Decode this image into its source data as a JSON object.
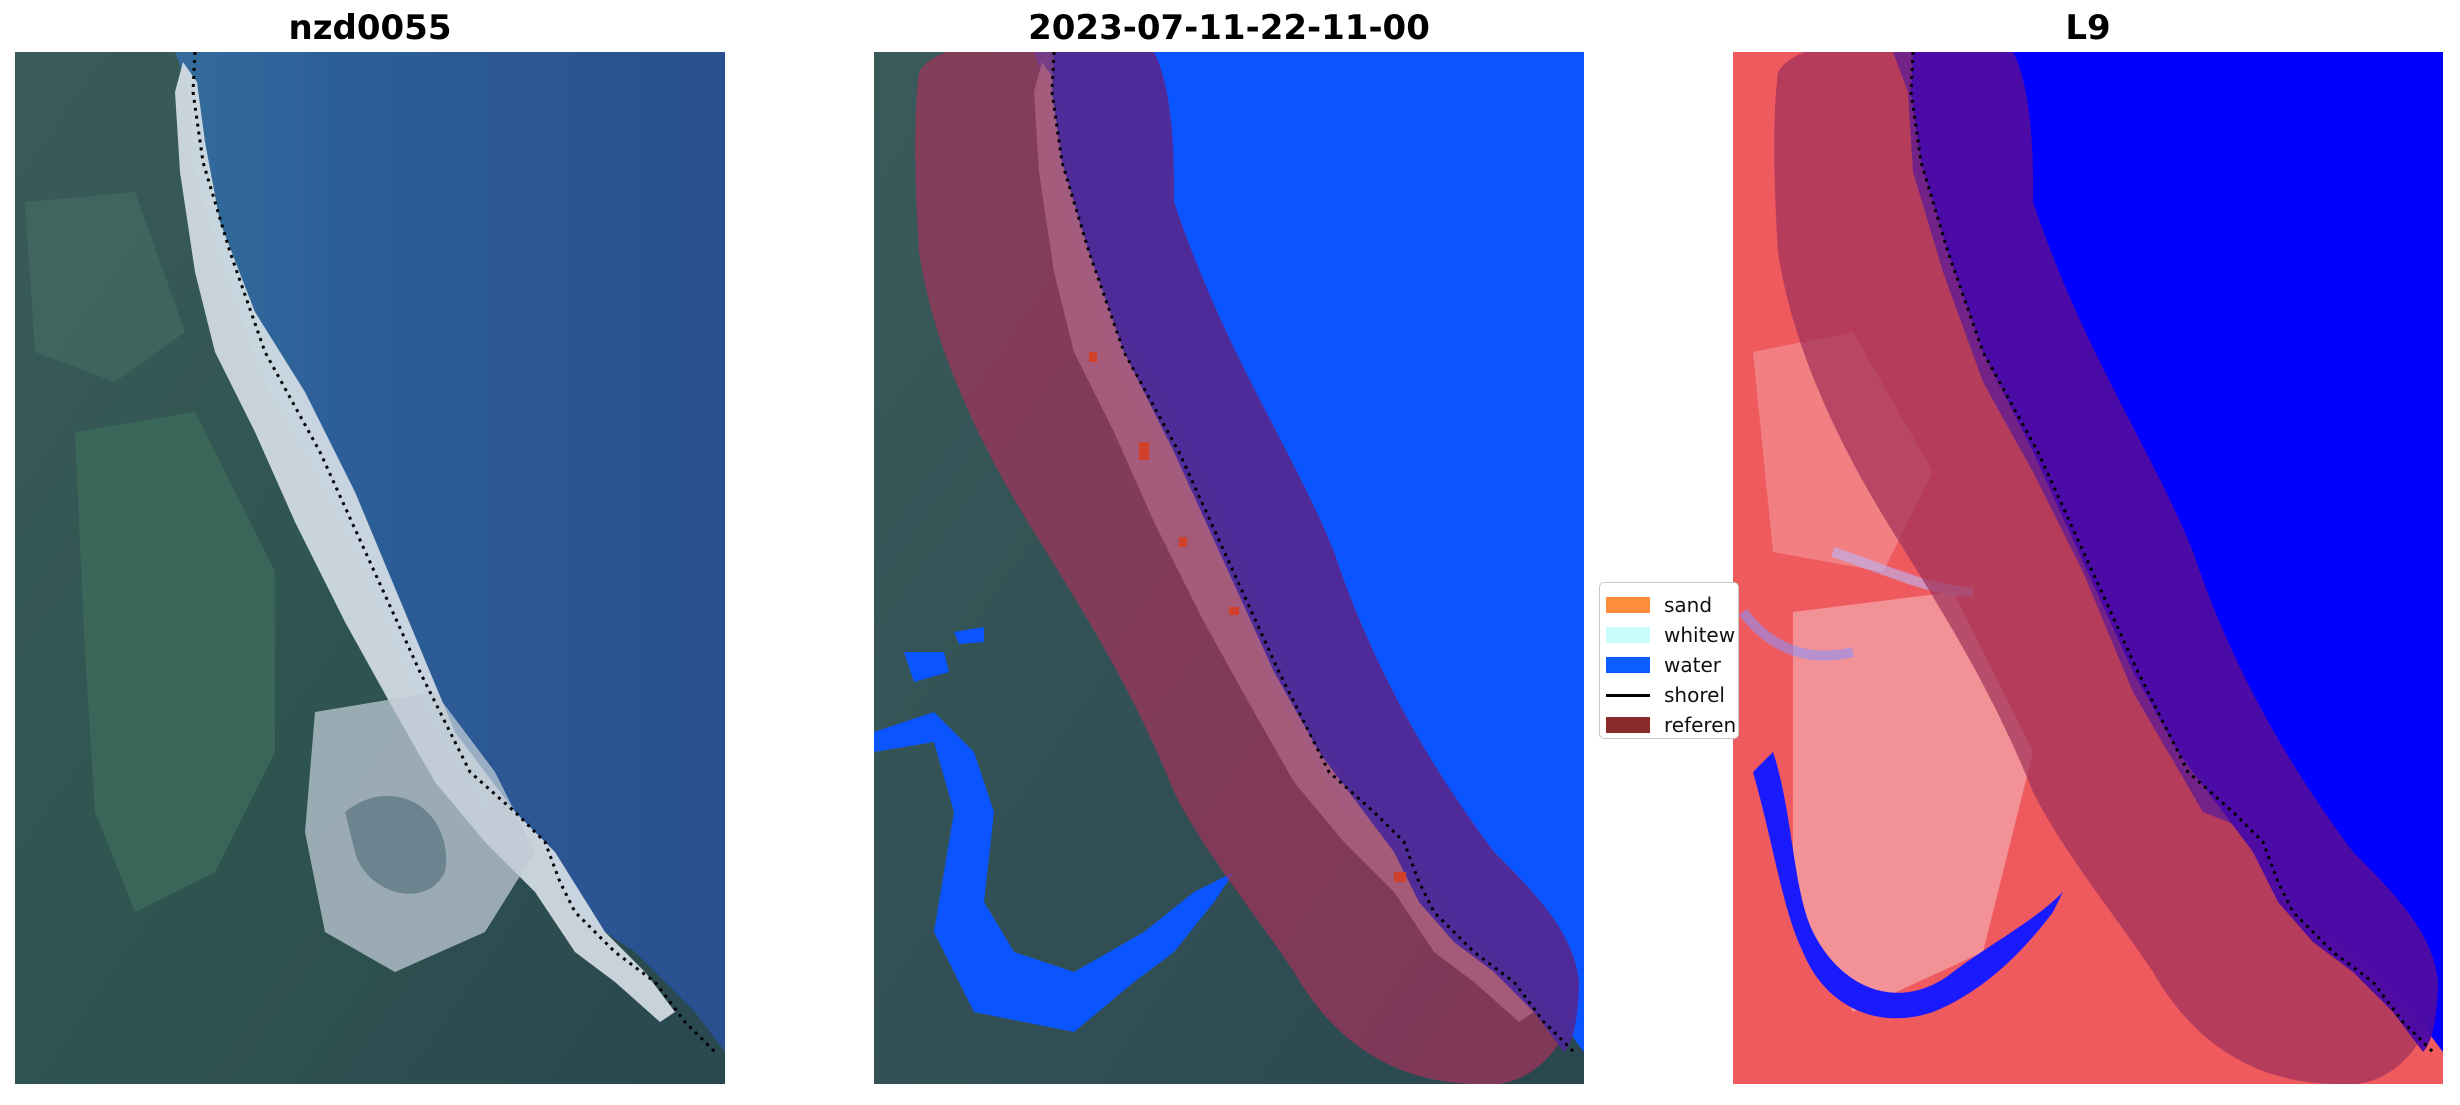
{
  "panels": [
    {
      "title": "nzd0055",
      "type": "rgb-satellite-image"
    },
    {
      "title": "2023-07-11-22-11-00",
      "type": "classified-image"
    },
    {
      "title": "L9",
      "type": "index-image"
    }
  ],
  "legend": {
    "items": [
      {
        "label": "sand",
        "color": "#ff8c3a",
        "kind": "patch"
      },
      {
        "label": "whitew",
        "color": "#c8fbfb",
        "kind": "patch"
      },
      {
        "label": "water",
        "color": "#0a5dff",
        "kind": "patch"
      },
      {
        "label": "shorel",
        "color": "#000000",
        "kind": "line"
      },
      {
        "label": "referen",
        "color": "#8b2a2a",
        "kind": "patch"
      }
    ]
  },
  "colors": {
    "ocean": "#2a5a95",
    "land_dark": "#2c4a52",
    "beach": "#d9dfe5",
    "water_class": "#0a55ff",
    "reference_overlay": "#a0335a",
    "index_high": "#e8333b",
    "index_low": "#0000ff"
  }
}
